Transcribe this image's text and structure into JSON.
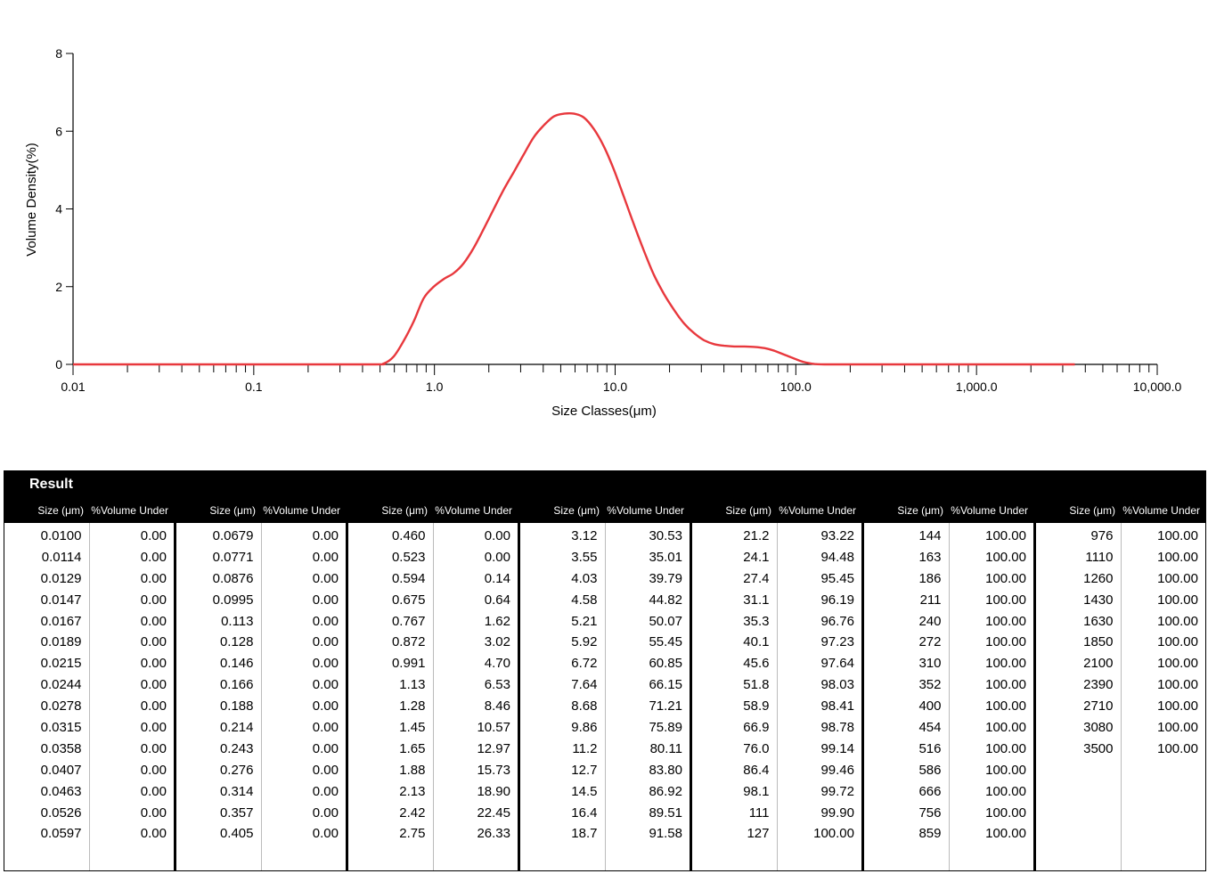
{
  "chart_data": {
    "type": "line",
    "xlabel": "Size Classes(μm)",
    "ylabel": "Volume Density(%)",
    "xscale": "log",
    "xlim": [
      0.01,
      10000
    ],
    "ylim": [
      0,
      8
    ],
    "xtick_labels": [
      "0.01",
      "0.1",
      "1.0",
      "10.0",
      "100.0",
      "1,000.0",
      "10,000.0"
    ],
    "ytick_labels": [
      "0",
      "2",
      "4",
      "6",
      "8"
    ],
    "series": [
      {
        "color": "#e8383d",
        "x": [
          0.01,
          0.1,
          0.45,
          0.523,
          0.594,
          0.675,
          0.767,
          0.872,
          0.991,
          1.13,
          1.28,
          1.45,
          1.65,
          1.88,
          2.13,
          2.42,
          2.75,
          3.12,
          3.55,
          4.03,
          4.58,
          5.21,
          5.92,
          6.72,
          7.64,
          8.68,
          9.86,
          11.2,
          12.7,
          14.5,
          16.4,
          18.7,
          21.2,
          24.1,
          27.4,
          31.1,
          35.3,
          40.1,
          45.6,
          51.8,
          58.9,
          66.9,
          76.0,
          86.4,
          98.1,
          111,
          127,
          144,
          200,
          1000,
          3500
        ],
        "y": [
          0,
          0,
          0,
          0.02,
          0.2,
          0.6,
          1.1,
          1.7,
          2.0,
          2.2,
          2.35,
          2.6,
          3.0,
          3.5,
          4.0,
          4.5,
          4.95,
          5.4,
          5.85,
          6.15,
          6.38,
          6.45,
          6.45,
          6.35,
          6.05,
          5.6,
          5.0,
          4.3,
          3.6,
          2.9,
          2.3,
          1.8,
          1.4,
          1.05,
          0.8,
          0.62,
          0.52,
          0.48,
          0.46,
          0.46,
          0.45,
          0.42,
          0.35,
          0.25,
          0.15,
          0.06,
          0.01,
          0,
          0,
          0,
          0
        ]
      }
    ]
  },
  "result": {
    "title": "Result",
    "col_size_label": "Size (μm)",
    "col_volume_label": "%Volume Under",
    "groups": [
      {
        "sizes": [
          "0.0100",
          "0.0114",
          "0.0129",
          "0.0147",
          "0.0167",
          "0.0189",
          "0.0215",
          "0.0244",
          "0.0278",
          "0.0315",
          "0.0358",
          "0.0407",
          "0.0463",
          "0.0526",
          "0.0597"
        ],
        "volumes": [
          "0.00",
          "0.00",
          "0.00",
          "0.00",
          "0.00",
          "0.00",
          "0.00",
          "0.00",
          "0.00",
          "0.00",
          "0.00",
          "0.00",
          "0.00",
          "0.00",
          "0.00"
        ]
      },
      {
        "sizes": [
          "0.0679",
          "0.0771",
          "0.0876",
          "0.0995",
          "0.113",
          "0.128",
          "0.146",
          "0.166",
          "0.188",
          "0.214",
          "0.243",
          "0.276",
          "0.314",
          "0.357",
          "0.405"
        ],
        "volumes": [
          "0.00",
          "0.00",
          "0.00",
          "0.00",
          "0.00",
          "0.00",
          "0.00",
          "0.00",
          "0.00",
          "0.00",
          "0.00",
          "0.00",
          "0.00",
          "0.00",
          "0.00"
        ]
      },
      {
        "sizes": [
          "0.460",
          "0.523",
          "0.594",
          "0.675",
          "0.767",
          "0.872",
          "0.991",
          "1.13",
          "1.28",
          "1.45",
          "1.65",
          "1.88",
          "2.13",
          "2.42",
          "2.75"
        ],
        "volumes": [
          "0.00",
          "0.00",
          "0.14",
          "0.64",
          "1.62",
          "3.02",
          "4.70",
          "6.53",
          "8.46",
          "10.57",
          "12.97",
          "15.73",
          "18.90",
          "22.45",
          "26.33"
        ]
      },
      {
        "sizes": [
          "3.12",
          "3.55",
          "4.03",
          "4.58",
          "5.21",
          "5.92",
          "6.72",
          "7.64",
          "8.68",
          "9.86",
          "11.2",
          "12.7",
          "14.5",
          "16.4",
          "18.7"
        ],
        "volumes": [
          "30.53",
          "35.01",
          "39.79",
          "44.82",
          "50.07",
          "55.45",
          "60.85",
          "66.15",
          "71.21",
          "75.89",
          "80.11",
          "83.80",
          "86.92",
          "89.51",
          "91.58"
        ]
      },
      {
        "sizes": [
          "21.2",
          "24.1",
          "27.4",
          "31.1",
          "35.3",
          "40.1",
          "45.6",
          "51.8",
          "58.9",
          "66.9",
          "76.0",
          "86.4",
          "98.1",
          "111",
          "127"
        ],
        "volumes": [
          "93.22",
          "94.48",
          "95.45",
          "96.19",
          "96.76",
          "97.23",
          "97.64",
          "98.03",
          "98.41",
          "98.78",
          "99.14",
          "99.46",
          "99.72",
          "99.90",
          "100.00"
        ]
      },
      {
        "sizes": [
          "144",
          "163",
          "186",
          "211",
          "240",
          "272",
          "310",
          "352",
          "400",
          "454",
          "516",
          "586",
          "666",
          "756",
          "859"
        ],
        "volumes": [
          "100.00",
          "100.00",
          "100.00",
          "100.00",
          "100.00",
          "100.00",
          "100.00",
          "100.00",
          "100.00",
          "100.00",
          "100.00",
          "100.00",
          "100.00",
          "100.00",
          "100.00"
        ]
      },
      {
        "sizes": [
          "976",
          "1110",
          "1260",
          "1430",
          "1630",
          "1850",
          "2100",
          "2390",
          "2710",
          "3080",
          "3500"
        ],
        "volumes": [
          "100.00",
          "100.00",
          "100.00",
          "100.00",
          "100.00",
          "100.00",
          "100.00",
          "100.00",
          "100.00",
          "100.00",
          "100.00"
        ]
      }
    ]
  }
}
